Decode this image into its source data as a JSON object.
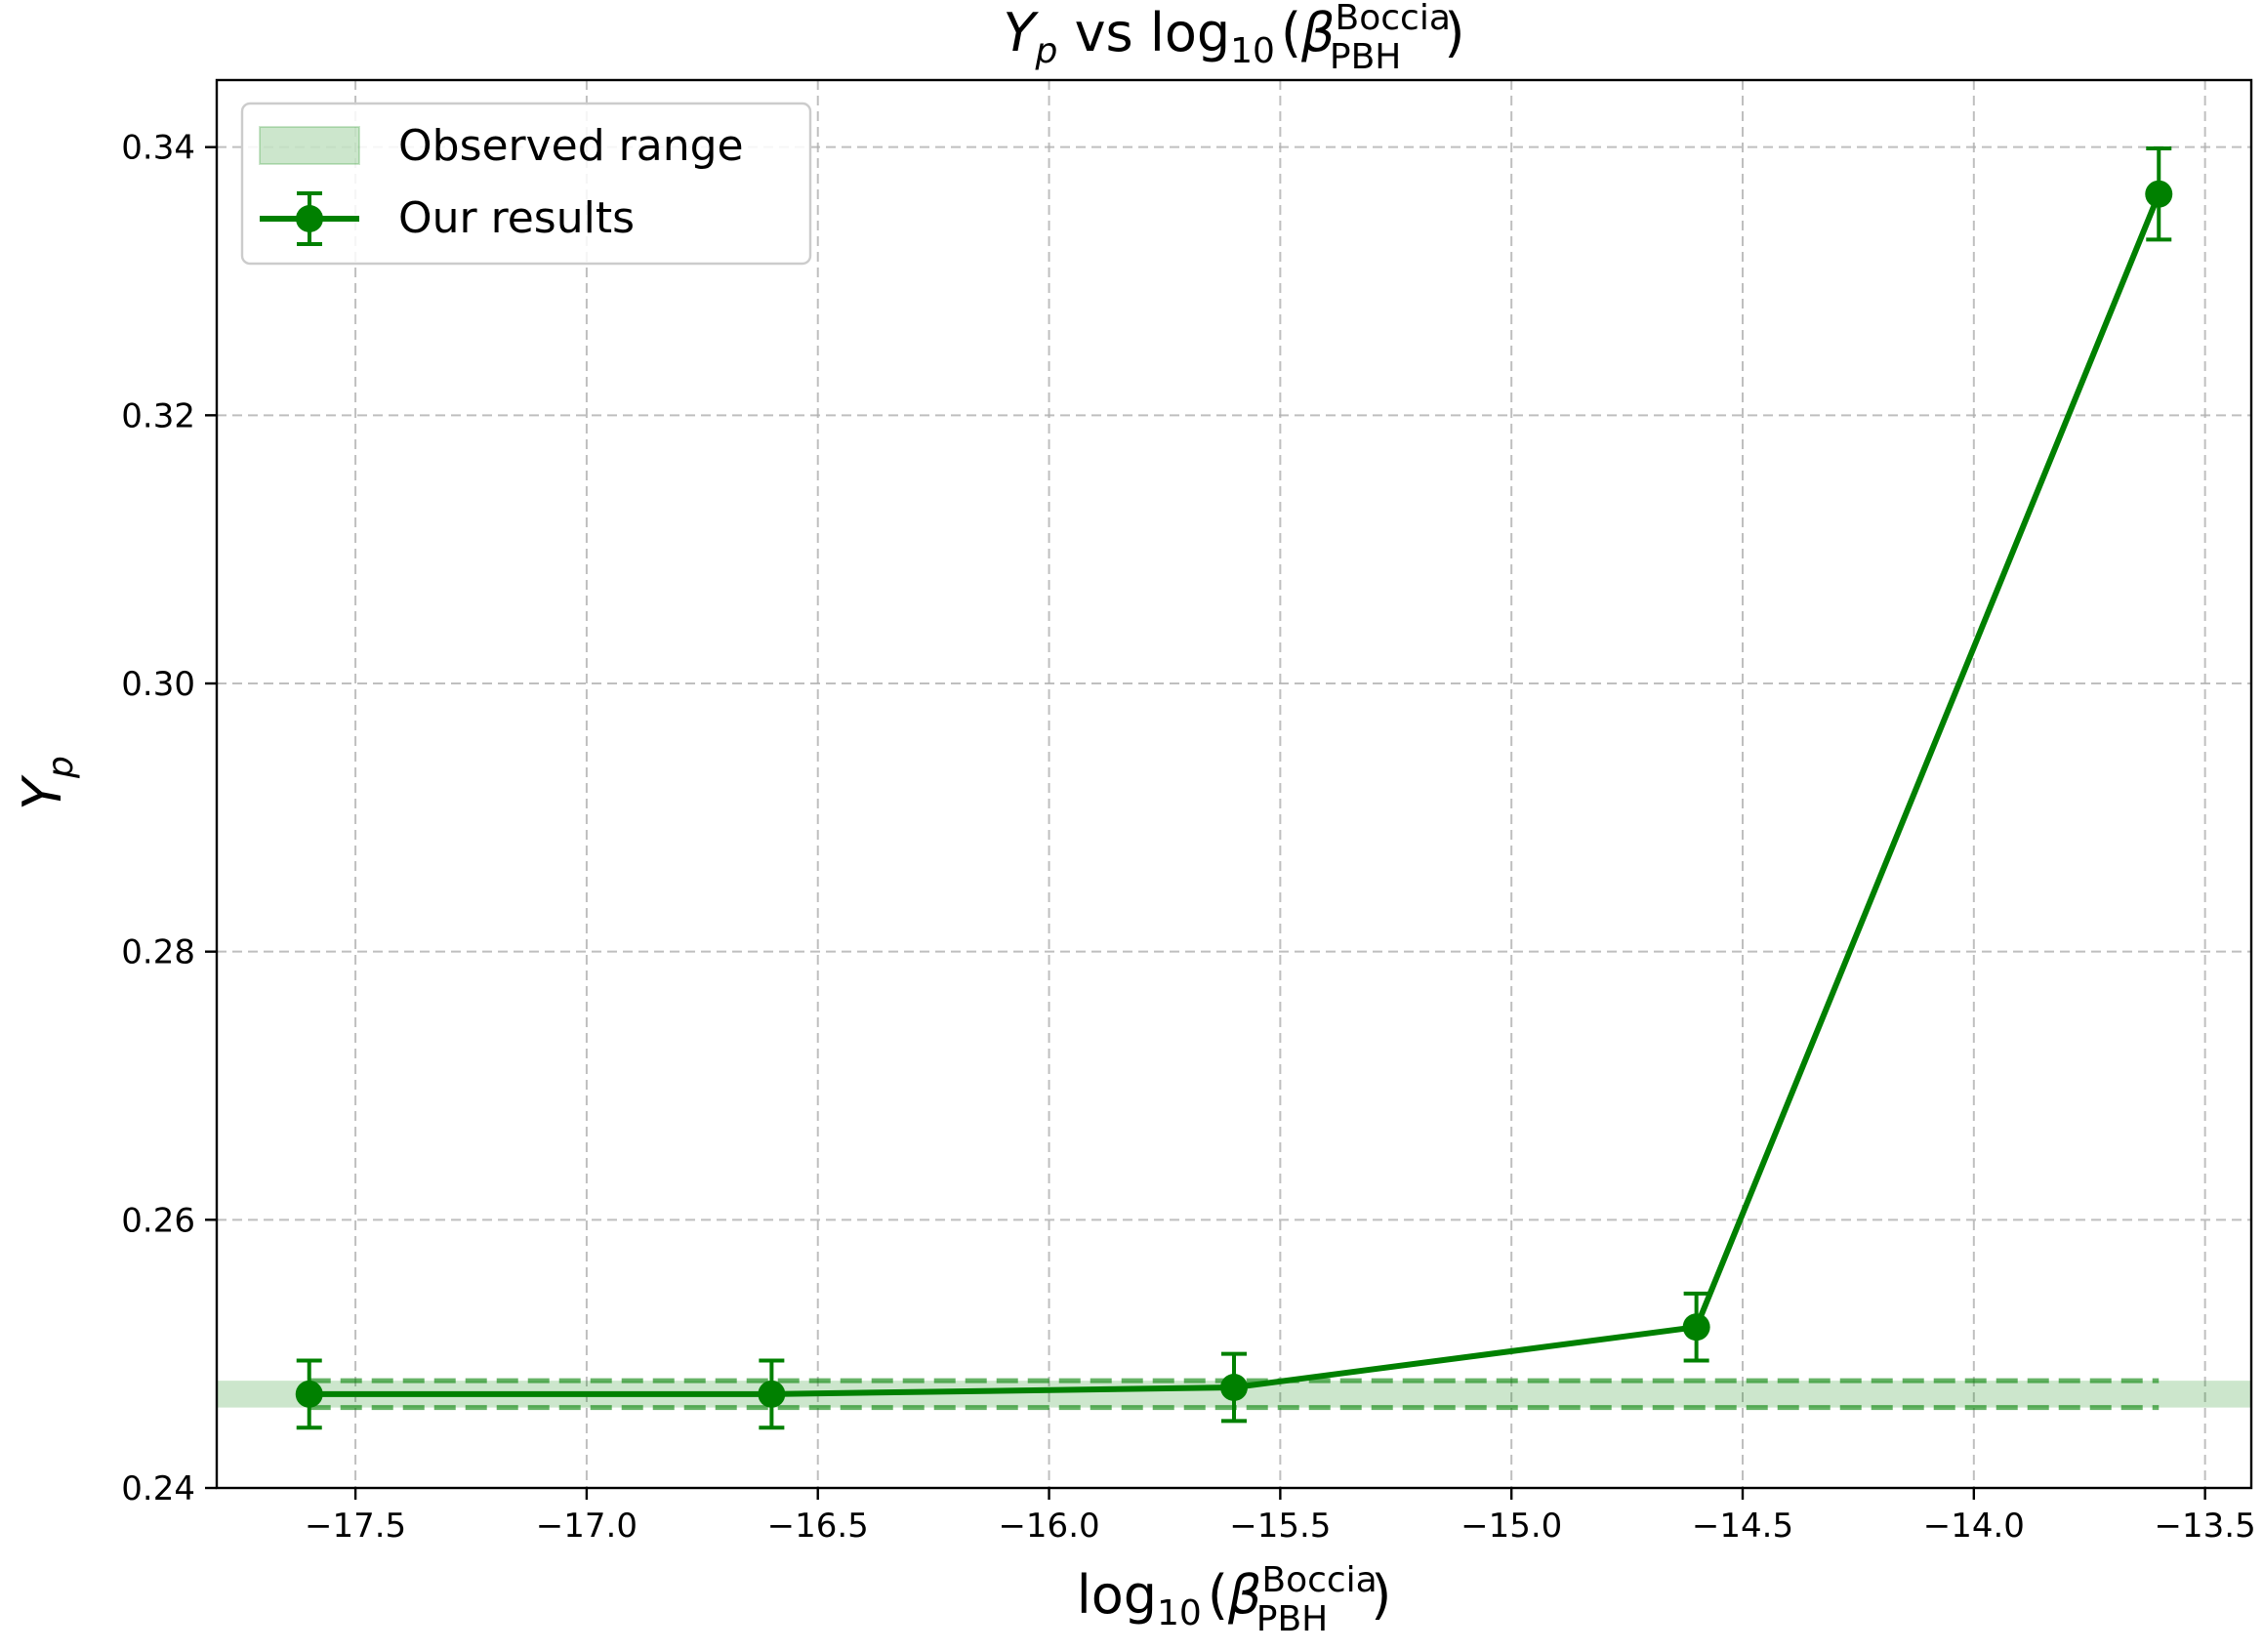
{
  "chart_data": {
    "type": "line",
    "title": "Y_p vs log10(β_PBH^Boccia)",
    "title_parts": {
      "y_main": "Y",
      "y_sub": "p",
      "vs": " vs ",
      "log": "log",
      "log_sub": "10",
      "open_paren": "(",
      "beta": "β",
      "beta_sup": "Boccia",
      "beta_sub": "PBH",
      "close_paren": ")"
    },
    "xlabel": "log10(β_PBH^Boccia)",
    "ylabel": "Y_p",
    "xlim": [
      -17.8,
      -13.4
    ],
    "ylim": [
      0.24,
      0.345
    ],
    "x_ticks": [
      -17.5,
      -17.0,
      -16.5,
      -16.0,
      -15.5,
      -15.0,
      -14.5,
      -14.0,
      -13.5
    ],
    "x_tick_labels": [
      "−17.5",
      "−17.0",
      "−16.5",
      "−16.0",
      "−15.5",
      "−15.0",
      "−14.5",
      "−14.0",
      "−13.5"
    ],
    "y_ticks": [
      0.24,
      0.26,
      0.28,
      0.3,
      0.32,
      0.34
    ],
    "y_tick_labels": [
      "0.24",
      "0.26",
      "0.28",
      "0.30",
      "0.32",
      "0.34"
    ],
    "grid": true,
    "legend_position": "top-left",
    "series": [
      {
        "name": "Our results",
        "color": "#008000",
        "x": [
          -17.6,
          -16.6,
          -15.6,
          -14.6,
          -13.6
        ],
        "y": [
          0.247,
          0.247,
          0.2475,
          0.252,
          0.3365
        ],
        "yerr": [
          0.0025,
          0.0025,
          0.0025,
          0.0025,
          0.0034
        ]
      }
    ],
    "band": {
      "name": "Observed range",
      "color": "#008000",
      "y_low": 0.246,
      "y_high": 0.248,
      "line_x_start": -17.6,
      "line_x_end": -13.6
    }
  }
}
